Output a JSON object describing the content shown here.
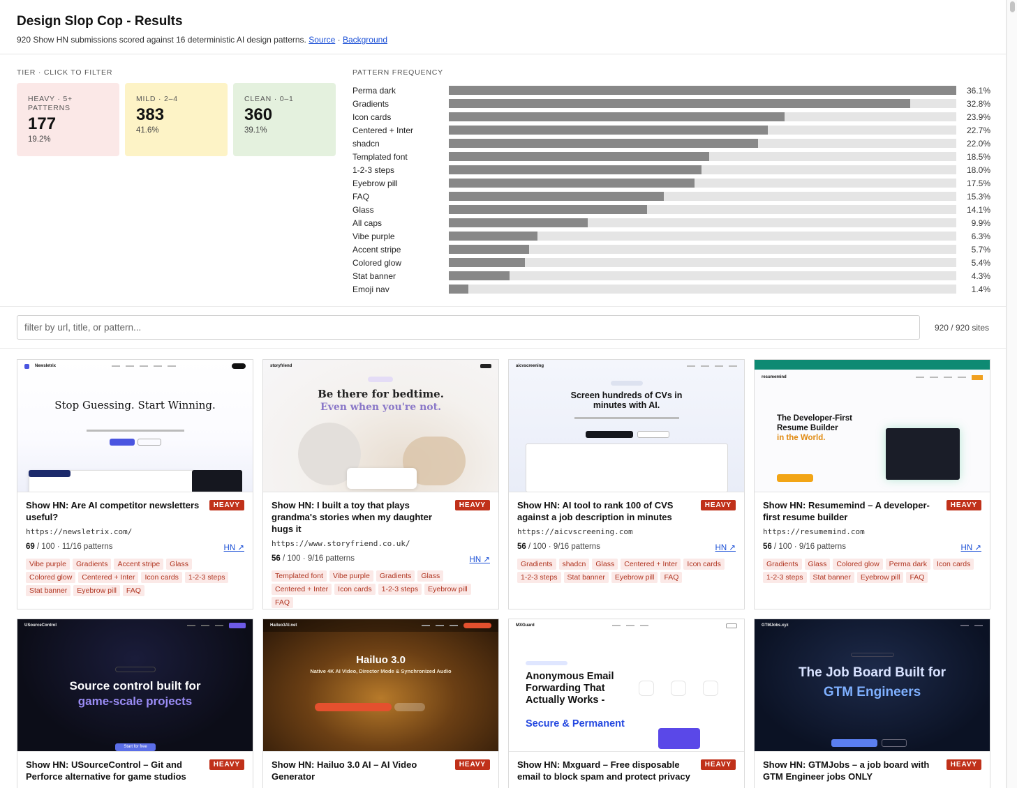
{
  "header": {
    "title": "Design Slop Cop - Results",
    "subtitle": "920 Show HN submissions scored against 16 deterministic AI design patterns.",
    "source_link": "Source",
    "separator": "·",
    "background_link": "Background"
  },
  "tiers": {
    "label": "TIER · CLICK TO FILTER",
    "items": [
      {
        "name": "HEAVY · 5+ PATTERNS",
        "count": "177",
        "pct": "19.2%",
        "color": "#fbe8e7"
      },
      {
        "name": "MILD · 2–4",
        "count": "383",
        "pct": "41.6%",
        "color": "#fdf3c6"
      },
      {
        "name": "CLEAN · 0–1",
        "count": "360",
        "pct": "39.1%",
        "color": "#e4f1de"
      }
    ]
  },
  "chart_data": {
    "type": "bar",
    "title": "PATTERN FREQUENCY",
    "categories": [
      "Perma dark",
      "Gradients",
      "Icon cards",
      "Centered + Inter",
      "shadcn",
      "Templated font",
      "1-2-3 steps",
      "Eyebrow pill",
      "FAQ",
      "Glass",
      "All caps",
      "Vibe purple",
      "Accent stripe",
      "Colored glow",
      "Stat banner",
      "Emoji nav"
    ],
    "values": [
      36.1,
      32.8,
      23.9,
      22.7,
      22.0,
      18.5,
      18.0,
      17.5,
      15.3,
      14.1,
      9.9,
      6.3,
      5.7,
      5.4,
      4.3,
      1.4
    ],
    "value_labels": [
      "36.1%",
      "32.8%",
      "23.9%",
      "22.7%",
      "22.0%",
      "18.5%",
      "18.0%",
      "17.5%",
      "15.3%",
      "14.1%",
      "9.9%",
      "6.3%",
      "5.7%",
      "5.4%",
      "4.3%",
      "1.4%"
    ],
    "orientation": "horizontal",
    "xlim": [
      0,
      36.1
    ],
    "bar_color": "#888888",
    "track_color": "#e5e5e5"
  },
  "filter": {
    "placeholder": "filter by url, title, or pattern...",
    "count": "920 / 920 sites"
  },
  "cards": [
    {
      "title": "Show HN: Are AI competitor newsletters useful?",
      "badge": "HEAVY",
      "url": "https://newsletrix.com/",
      "score": "69",
      "score_max": "/ 100",
      "patterns": "11/16 patterns",
      "hn": "HN ↗",
      "tags": [
        "Vibe purple",
        "Gradients",
        "Accent stripe",
        "Glass",
        "Colored glow",
        "Centered + Inter",
        "Icon cards",
        "1-2-3 steps",
        "Stat banner",
        "Eyebrow pill",
        "FAQ"
      ],
      "thumb": {
        "brand": "Newsletrix",
        "headline": "Stop Guessing. Start Winning."
      }
    },
    {
      "title": "Show HN: I built a toy that plays grandma's stories when my daughter hugs it",
      "badge": "HEAVY",
      "url": "https://www.storyfriend.co.uk/",
      "score": "56",
      "score_max": "/ 100",
      "patterns": "9/16 patterns",
      "hn": "HN ↗",
      "tags": [
        "Templated font",
        "Vibe purple",
        "Gradients",
        "Glass",
        "Centered + Inter",
        "Icon cards",
        "1-2-3 steps",
        "Eyebrow pill",
        "FAQ"
      ],
      "thumb": {
        "brand": "storyfriend",
        "headline": "Be there for bedtime.",
        "headline2": "Even when you're not."
      }
    },
    {
      "title": "Show HN: AI tool to rank 100 of CVS against a job description in minutes",
      "badge": "HEAVY",
      "url": "https://aicvscreening.com",
      "score": "56",
      "score_max": "/ 100",
      "patterns": "9/16 patterns",
      "hn": "HN ↗",
      "tags": [
        "Gradients",
        "shadcn",
        "Glass",
        "Centered + Inter",
        "Icon cards",
        "1-2-3 steps",
        "Stat banner",
        "Eyebrow pill",
        "FAQ"
      ],
      "thumb": {
        "brand": "aicvscreening",
        "headline": "Screen hundreds of CVs in",
        "headline2": "minutes with AI."
      }
    },
    {
      "title": "Show HN: Resumemind – A developer-first resume builder",
      "badge": "HEAVY",
      "url": "https://resumemind.com",
      "score": "56",
      "score_max": "/ 100",
      "patterns": "9/16 patterns",
      "hn": "HN ↗",
      "tags": [
        "Gradients",
        "Glass",
        "Colored glow",
        "Perma dark",
        "Icon cards",
        "1-2-3 steps",
        "Stat banner",
        "Eyebrow pill",
        "FAQ"
      ],
      "thumb": {
        "brand": "resumemind",
        "headline": "The Developer-First",
        "headline2": "Resume Builder",
        "headline3": "in the World."
      }
    },
    {
      "title": "Show HN: USourceControl – Git and Perforce alternative for game studios",
      "badge": "HEAVY",
      "thumb": {
        "brand": "USourceControl",
        "headline": "Source control built for",
        "headline2": "game-scale projects",
        "cta": "Start for free"
      }
    },
    {
      "title": "Show HN: Hailuo 3.0 AI – AI Video Generator",
      "badge": "HEAVY",
      "thumb": {
        "brand": "Hailuo3AI.net",
        "headline": "Hailuo 3.0",
        "headline2": "Native 4K AI Video, Director Mode & Synchronized Audio"
      }
    },
    {
      "title": "Show HN: Mxguard – Free disposable email to block spam and protect privacy",
      "badge": "HEAVY",
      "thumb": {
        "brand": "MXGuard",
        "headline": "Anonymous Email Forwarding That Actually Works -",
        "headline2": "Secure & Permanent"
      }
    },
    {
      "title": "Show HN: GTMJobs – a job board with GTM Engineer jobs ONLY",
      "badge": "HEAVY",
      "thumb": {
        "brand": "GTMJobs.xyz",
        "headline": "The Job Board Built for",
        "headline2": "GTM Engineers"
      }
    }
  ]
}
